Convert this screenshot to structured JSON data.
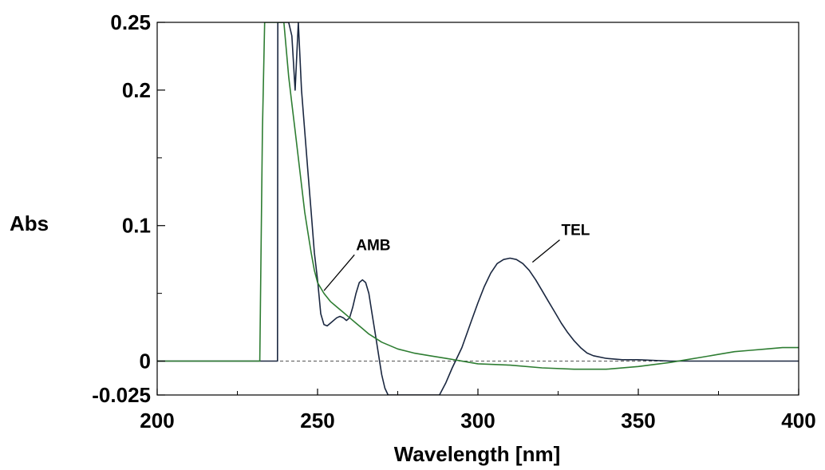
{
  "chart_data": {
    "type": "line",
    "xlabel": "Wavelength [nm]",
    "ylabel": "Abs",
    "xlim": [
      200,
      400
    ],
    "ylim": [
      -0.025,
      0.25
    ],
    "x_ticks": [
      200,
      250,
      300,
      350,
      400
    ],
    "x_tick_labels": [
      "200",
      "250",
      "300",
      "350",
      "400"
    ],
    "y_ticks": [
      -0.025,
      0,
      0.1,
      0.2,
      0.25
    ],
    "y_tick_labels": [
      "-0.025",
      "0",
      "0.1",
      "0.2",
      "0.25"
    ],
    "x_minor_ticks": [
      225,
      275,
      325,
      375
    ],
    "y_minor_ticks": [
      0.05,
      0.15
    ],
    "zero_line": true,
    "grid": false,
    "colors": {
      "TEL": "#1a2740",
      "AMB": "#2e7d32",
      "zero_line": "#555555",
      "axis": "#000000"
    },
    "series": [
      {
        "key": "TEL",
        "points": [
          [
            200,
            0
          ],
          [
            237.5,
            0
          ],
          [
            237.6,
            0.25
          ],
          [
            241,
            0.25
          ],
          [
            242,
            0.24
          ],
          [
            243,
            0.2
          ],
          [
            244,
            0.25
          ],
          [
            244.3,
            0.235
          ],
          [
            245,
            0.2
          ],
          [
            246,
            0.17
          ],
          [
            247,
            0.14
          ],
          [
            248,
            0.11
          ],
          [
            249,
            0.08
          ],
          [
            250,
            0.06
          ],
          [
            251,
            0.035
          ],
          [
            252,
            0.027
          ],
          [
            253,
            0.026
          ],
          [
            254,
            0.028
          ],
          [
            256,
            0.032
          ],
          [
            257,
            0.033
          ],
          [
            258,
            0.032
          ],
          [
            259,
            0.03
          ],
          [
            260,
            0.032
          ],
          [
            261,
            0.04
          ],
          [
            262,
            0.05
          ],
          [
            263,
            0.058
          ],
          [
            264,
            0.06
          ],
          [
            265,
            0.058
          ],
          [
            266,
            0.05
          ],
          [
            267,
            0.035
          ],
          [
            268,
            0.02
          ],
          [
            269,
            0.005
          ],
          [
            270,
            -0.01
          ],
          [
            271,
            -0.02
          ],
          [
            272,
            -0.025
          ],
          [
            288,
            -0.025
          ],
          [
            290,
            -0.016
          ],
          [
            292,
            -0.005
          ],
          [
            295,
            0.01
          ],
          [
            298,
            0.03
          ],
          [
            300,
            0.043
          ],
          [
            302,
            0.055
          ],
          [
            304,
            0.065
          ],
          [
            306,
            0.072
          ],
          [
            308,
            0.075
          ],
          [
            310,
            0.076
          ],
          [
            312,
            0.075
          ],
          [
            314,
            0.072
          ],
          [
            316,
            0.067
          ],
          [
            318,
            0.06
          ],
          [
            320,
            0.052
          ],
          [
            322,
            0.044
          ],
          [
            324,
            0.036
          ],
          [
            326,
            0.028
          ],
          [
            328,
            0.021
          ],
          [
            330,
            0.015
          ],
          [
            332,
            0.01
          ],
          [
            334,
            0.006
          ],
          [
            336,
            0.004
          ],
          [
            340,
            0.002
          ],
          [
            345,
            0.001
          ],
          [
            350,
            0.001
          ],
          [
            360,
            0
          ],
          [
            400,
            0
          ]
        ]
      },
      {
        "key": "AMB",
        "points": [
          [
            200,
            0
          ],
          [
            232,
            0
          ],
          [
            232.8,
            0.17
          ],
          [
            233.5,
            0.25
          ],
          [
            239.5,
            0.25
          ],
          [
            241,
            0.21
          ],
          [
            242,
            0.19
          ],
          [
            243,
            0.17
          ],
          [
            244,
            0.15
          ],
          [
            245,
            0.13
          ],
          [
            246,
            0.11
          ],
          [
            247,
            0.095
          ],
          [
            248,
            0.08
          ],
          [
            249,
            0.067
          ],
          [
            250,
            0.058
          ],
          [
            252,
            0.05
          ],
          [
            254,
            0.044
          ],
          [
            256,
            0.04
          ],
          [
            258,
            0.036
          ],
          [
            260,
            0.032
          ],
          [
            262,
            0.028
          ],
          [
            264,
            0.024
          ],
          [
            266,
            0.02
          ],
          [
            268,
            0.017
          ],
          [
            270,
            0.014
          ],
          [
            272,
            0.012
          ],
          [
            275,
            0.009
          ],
          [
            280,
            0.006
          ],
          [
            285,
            0.004
          ],
          [
            290,
            0.002
          ],
          [
            300,
            -0.002
          ],
          [
            310,
            -0.003
          ],
          [
            320,
            -0.005
          ],
          [
            330,
            -0.006
          ],
          [
            340,
            -0.006
          ],
          [
            350,
            -0.004
          ],
          [
            360,
            -0.001
          ],
          [
            365,
            0.001
          ],
          [
            370,
            0.003
          ],
          [
            375,
            0.005
          ],
          [
            380,
            0.007
          ],
          [
            385,
            0.008
          ],
          [
            390,
            0.009
          ],
          [
            395,
            0.01
          ],
          [
            400,
            0.01
          ]
        ]
      }
    ],
    "annotations": [
      {
        "text": "AMB",
        "label_x": 262,
        "label_y": 0.082,
        "arrow_to_x": 252,
        "arrow_to_y": 0.052
      },
      {
        "text": "TEL",
        "label_x": 326,
        "label_y": 0.093,
        "arrow_to_x": 317,
        "arrow_to_y": 0.073
      }
    ]
  }
}
